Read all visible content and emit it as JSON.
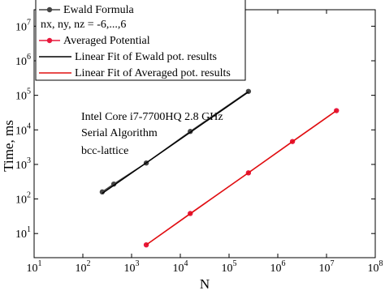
{
  "chart_data": {
    "type": "line",
    "log_x": true,
    "log_y": true,
    "x_label": "N",
    "y_label": "Time, ms",
    "xlim": [
      10,
      100000000
    ],
    "ylim": [
      2,
      30000000
    ],
    "xticks": [
      {
        "value": 10,
        "label": "10^1"
      },
      {
        "value": 100,
        "label": "10^2"
      },
      {
        "value": 1000,
        "label": "10^3"
      },
      {
        "value": 10000,
        "label": "10^4"
      },
      {
        "value": 100000,
        "label": "10^5"
      },
      {
        "value": 1000000,
        "label": "10^6"
      },
      {
        "value": 10000000,
        "label": "10^7"
      },
      {
        "value": 100000000,
        "label": "10^8"
      }
    ],
    "yticks": [
      {
        "value": 10,
        "label": "10^1"
      },
      {
        "value": 100,
        "label": "10^2"
      },
      {
        "value": 1000,
        "label": "10^3"
      },
      {
        "value": 10000,
        "label": "10^4"
      },
      {
        "value": 100000,
        "label": "10^5"
      },
      {
        "value": 1000000,
        "label": "10^6"
      },
      {
        "value": 10000000,
        "label": "10^7"
      }
    ],
    "series": [
      {
        "name": "Ewald Formula",
        "color": "#444444",
        "markers": true,
        "x": [
          250,
          432,
          2000,
          16000,
          250000
        ],
        "values": [
          160,
          270,
          1100,
          9000,
          130000
        ]
      },
      {
        "name": "Averaged Potential",
        "color": "#e8183c",
        "markers": true,
        "x": [
          2000,
          16000,
          250000,
          2000000,
          16000000
        ],
        "values": [
          4.7,
          38,
          570,
          4600,
          36000
        ]
      },
      {
        "name": "Linear Fit of Ewald pot. results",
        "color": "#000000",
        "markers": false,
        "x": [
          250,
          250000
        ],
        "values": [
          145,
          125000
        ]
      },
      {
        "name": "Linear Fit of Averaged pot. results",
        "color": "#e01010",
        "markers": false,
        "x": [
          2000,
          16000000
        ],
        "values": [
          4.7,
          36000
        ]
      }
    ],
    "legend_note": "nx, ny, nz = -6,...,6",
    "annotations": [
      "Intel Core i7-7700HQ 2.8 GHz",
      "Serial Algorithm",
      "bcc-lattice"
    ]
  }
}
